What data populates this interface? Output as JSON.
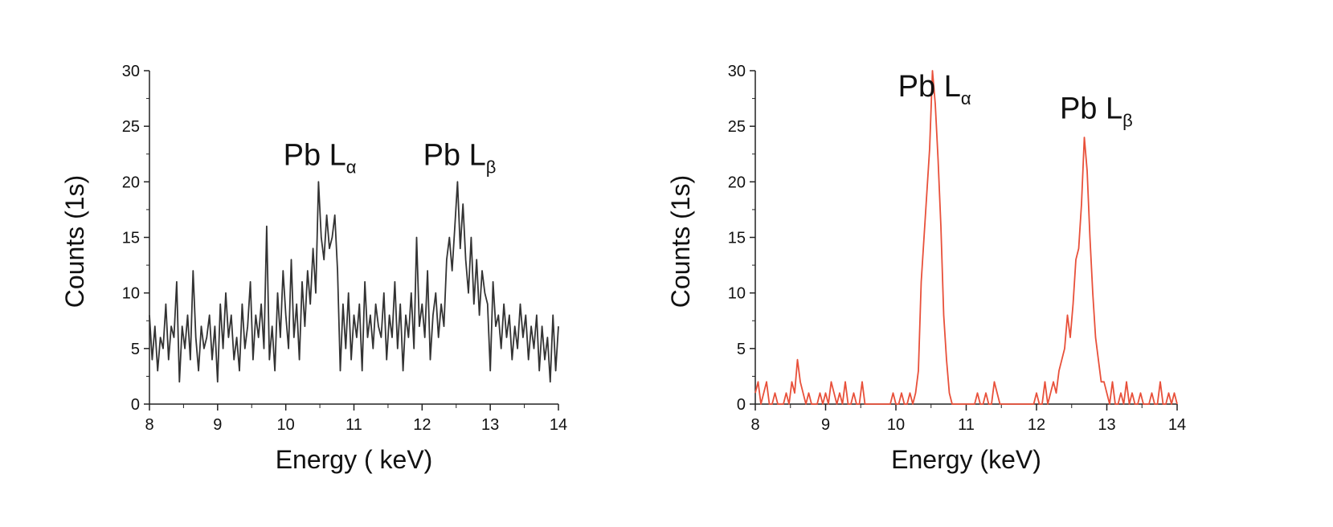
{
  "chart_data": [
    {
      "type": "line",
      "xlabel": "Energy ( keV)",
      "ylabel": "Counts (1s)",
      "xlim": [
        8,
        14
      ],
      "ylim": [
        0,
        30
      ],
      "xticks": [
        "8",
        "9",
        "10",
        "11",
        "12",
        "13",
        "14"
      ],
      "yticks": [
        "0",
        "5",
        "10",
        "15",
        "20",
        "25",
        "30"
      ],
      "line_color": "#333333",
      "annotations": [
        {
          "main": "Pb L",
          "sub": "α",
          "x": 10.5,
          "y": 21.5
        },
        {
          "main": "Pb L",
          "sub": "β",
          "x": 12.55,
          "y": 21.5
        }
      ],
      "series": [
        {
          "x": [
            8.0,
            8.04,
            8.08,
            8.12,
            8.16,
            8.2,
            8.24,
            8.28,
            8.32,
            8.36,
            8.4,
            8.44,
            8.48,
            8.52,
            8.56,
            8.6,
            8.64,
            8.68,
            8.72,
            8.76,
            8.8,
            8.84,
            8.88,
            8.92,
            8.96,
            9.0,
            9.04,
            9.08,
            9.12,
            9.16,
            9.2,
            9.24,
            9.28,
            9.32,
            9.36,
            9.4,
            9.44,
            9.48,
            9.52,
            9.56,
            9.6,
            9.64,
            9.68,
            9.72,
            9.76,
            9.8,
            9.84,
            9.88,
            9.92,
            9.96,
            10.0,
            10.04,
            10.08,
            10.12,
            10.16,
            10.2,
            10.24,
            10.28,
            10.32,
            10.36,
            10.4,
            10.44,
            10.48,
            10.52,
            10.56,
            10.6,
            10.64,
            10.68,
            10.72,
            10.76,
            10.8,
            10.84,
            10.88,
            10.92,
            10.96,
            11.0,
            11.04,
            11.08,
            11.12,
            11.16,
            11.2,
            11.24,
            11.28,
            11.32,
            11.36,
            11.4,
            11.44,
            11.48,
            11.52,
            11.56,
            11.6,
            11.64,
            11.68,
            11.72,
            11.76,
            11.8,
            11.84,
            11.88,
            11.92,
            11.96,
            12.0,
            12.04,
            12.08,
            12.12,
            12.16,
            12.2,
            12.24,
            12.28,
            12.32,
            12.36,
            12.4,
            12.44,
            12.48,
            12.52,
            12.56,
            12.6,
            12.64,
            12.68,
            12.72,
            12.76,
            12.8,
            12.84,
            12.88,
            12.92,
            12.96,
            13.0,
            13.04,
            13.08,
            13.12,
            13.16,
            13.2,
            13.24,
            13.28,
            13.32,
            13.36,
            13.4,
            13.44,
            13.48,
            13.52,
            13.56,
            13.6,
            13.64,
            13.68,
            13.72,
            13.76,
            13.8,
            13.84,
            13.88,
            13.92,
            13.96,
            14.0
          ],
          "y": [
            8,
            4,
            7,
            3,
            6,
            5,
            9,
            4,
            7,
            6,
            11,
            2,
            7,
            5,
            8,
            4,
            12,
            6,
            3,
            7,
            5,
            6,
            8,
            4,
            7,
            2,
            9,
            5,
            10,
            6,
            8,
            4,
            6,
            3,
            9,
            5,
            7,
            11,
            4,
            8,
            6,
            9,
            5,
            16,
            4,
            7,
            3,
            10,
            6,
            12,
            8,
            5,
            13,
            6,
            9,
            4,
            11,
            7,
            12,
            9,
            14,
            10,
            20,
            15,
            13,
            17,
            14,
            15,
            17,
            12,
            3,
            9,
            5,
            10,
            4,
            8,
            6,
            9,
            3,
            11,
            6,
            8,
            5,
            9,
            7,
            6,
            10,
            4,
            8,
            6,
            11,
            5,
            9,
            3,
            8,
            6,
            10,
            5,
            15,
            7,
            9,
            6,
            12,
            4,
            8,
            10,
            6,
            9,
            7,
            13,
            15,
            12,
            16,
            20,
            14,
            18,
            13,
            10,
            15,
            9,
            13,
            8,
            12,
            10,
            9,
            3,
            11,
            7,
            8,
            5,
            9,
            6,
            8,
            4,
            7,
            5,
            9,
            6,
            8,
            4,
            7,
            5,
            8,
            3,
            7,
            4,
            6,
            2,
            8,
            3,
            7
          ]
        }
      ]
    },
    {
      "type": "line",
      "xlabel": "Energy (keV)",
      "ylabel": "Counts (1s)",
      "xlim": [
        8,
        14
      ],
      "ylim": [
        0,
        30
      ],
      "xticks": [
        "8",
        "9",
        "10",
        "11",
        "12",
        "13",
        "14"
      ],
      "yticks": [
        "0",
        "5",
        "10",
        "15",
        "20",
        "25",
        "30"
      ],
      "line_color": "#e8503a",
      "annotations": [
        {
          "main": "Pb L",
          "sub": "α",
          "x": 10.55,
          "y": 27.7
        },
        {
          "main": "Pb L",
          "sub": "β",
          "x": 12.85,
          "y": 25.7
        }
      ],
      "series": [
        {
          "x": [
            8.0,
            8.04,
            8.08,
            8.12,
            8.16,
            8.2,
            8.24,
            8.28,
            8.32,
            8.36,
            8.4,
            8.44,
            8.48,
            8.52,
            8.56,
            8.6,
            8.64,
            8.68,
            8.72,
            8.76,
            8.8,
            8.84,
            8.88,
            8.92,
            8.96,
            9.0,
            9.04,
            9.08,
            9.12,
            9.16,
            9.2,
            9.24,
            9.28,
            9.32,
            9.36,
            9.4,
            9.44,
            9.48,
            9.52,
            9.56,
            9.6,
            9.64,
            9.68,
            9.72,
            9.76,
            9.8,
            9.84,
            9.88,
            9.92,
            9.96,
            10.0,
            10.04,
            10.08,
            10.12,
            10.16,
            10.2,
            10.24,
            10.28,
            10.32,
            10.36,
            10.4,
            10.44,
            10.48,
            10.52,
            10.56,
            10.6,
            10.64,
            10.68,
            10.72,
            10.76,
            10.8,
            10.84,
            10.88,
            10.92,
            10.96,
            11.0,
            11.04,
            11.08,
            11.12,
            11.16,
            11.2,
            11.24,
            11.28,
            11.32,
            11.36,
            11.4,
            11.44,
            11.48,
            11.52,
            11.56,
            11.6,
            11.64,
            11.68,
            11.72,
            11.76,
            11.8,
            11.84,
            11.88,
            11.92,
            11.96,
            12.0,
            12.04,
            12.08,
            12.12,
            12.16,
            12.2,
            12.24,
            12.28,
            12.32,
            12.36,
            12.4,
            12.44,
            12.48,
            12.52,
            12.56,
            12.6,
            12.64,
            12.68,
            12.72,
            12.76,
            12.8,
            12.84,
            12.88,
            12.92,
            12.96,
            13.0,
            13.04,
            13.08,
            13.12,
            13.16,
            13.2,
            13.24,
            13.28,
            13.32,
            13.36,
            13.4,
            13.44,
            13.48,
            13.52,
            13.56,
            13.6,
            13.64,
            13.68,
            13.72,
            13.76,
            13.8,
            13.84,
            13.88,
            13.92,
            13.96,
            14.0
          ],
          "y": [
            1,
            2,
            0,
            1,
            2,
            0,
            0,
            1,
            0,
            0,
            0,
            1,
            0,
            2,
            1,
            4,
            2,
            1,
            0,
            1,
            0,
            0,
            0,
            1,
            0,
            1,
            0,
            2,
            1,
            0,
            1,
            0,
            2,
            0,
            0,
            1,
            0,
            0,
            2,
            0,
            0,
            0,
            0,
            0,
            0,
            0,
            0,
            0,
            0,
            1,
            0,
            0,
            1,
            0,
            0,
            1,
            0,
            1,
            3,
            11,
            15,
            19,
            23,
            30,
            27,
            22,
            16,
            8,
            4,
            1,
            0,
            0,
            0,
            0,
            0,
            0,
            0,
            0,
            0,
            1,
            0,
            0,
            1,
            0,
            0,
            2,
            1,
            0,
            0,
            0,
            0,
            0,
            0,
            0,
            0,
            0,
            0,
            0,
            0,
            0,
            1,
            0,
            0,
            2,
            0,
            1,
            2,
            1,
            3,
            4,
            5,
            8,
            6,
            9,
            13,
            14,
            18,
            24,
            21,
            15,
            10,
            6,
            4,
            2,
            2,
            1,
            0,
            2,
            0,
            0,
            1,
            0,
            2,
            0,
            1,
            0,
            0,
            1,
            0,
            0,
            0,
            1,
            0,
            0,
            2,
            0,
            0,
            1,
            0,
            1,
            0
          ]
        }
      ]
    }
  ]
}
